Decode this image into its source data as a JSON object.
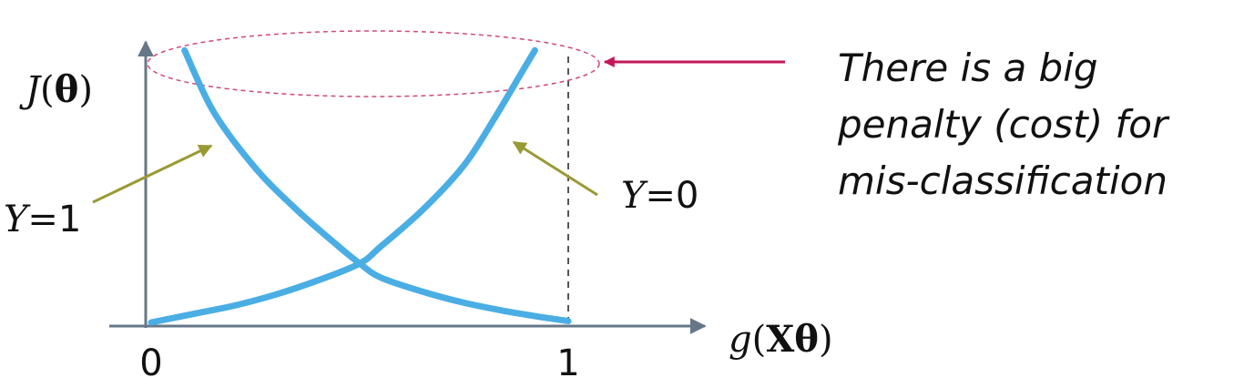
{
  "chart_data": {
    "type": "line",
    "title": "",
    "ylabel_fn": "J",
    "ylabel_arg": "θ",
    "xlabel_fn": "g",
    "xlabel_arg": "Xθ",
    "xlim": [
      0,
      1
    ],
    "x_ticks": [
      "0",
      "1"
    ],
    "series": [
      {
        "name": "Y=1",
        "label_var": "Y",
        "label_val": "1",
        "x": [
          0.08,
          0.15,
          0.25,
          0.35,
          0.45,
          0.5,
          0.55,
          0.65,
          0.75,
          0.85,
          0.93,
          1.0
        ],
        "y": [
          0.97,
          0.75,
          0.55,
          0.4,
          0.27,
          0.21,
          0.16,
          0.11,
          0.07,
          0.04,
          0.02,
          0.005
        ]
      },
      {
        "name": "Y=0",
        "label_var": "Y",
        "label_val": "0",
        "x": [
          0.0,
          0.1,
          0.2,
          0.3,
          0.4,
          0.5,
          0.55,
          0.65,
          0.75,
          0.82,
          0.88,
          0.92
        ],
        "y": [
          0.0,
          0.03,
          0.06,
          0.1,
          0.15,
          0.21,
          0.27,
          0.4,
          0.56,
          0.72,
          0.87,
          0.97
        ]
      }
    ],
    "annotation": [
      "There is a big",
      "penalty (cost) for",
      "mis-classification"
    ]
  },
  "colors": {
    "curve": "#4aaee4",
    "axis": "#667788",
    "pointer_arrow": "#9a9a35",
    "highlight": "#c2185b"
  }
}
